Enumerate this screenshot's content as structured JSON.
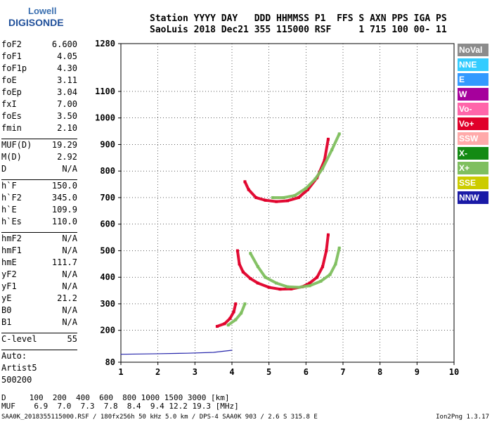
{
  "logo": {
    "line1": "Lowell",
    "line2": "DIGISONDE"
  },
  "header": {
    "line1": "Station YYYY DAY   DDD HHMMSS P1  FFS S AXN PPS IGA PS",
    "line2": "SaoLuis 2018 Dec21 355 115000 RSF     1 715 100 00- 11"
  },
  "params": {
    "group1": [
      {
        "name": "foF2",
        "value": "6.600"
      },
      {
        "name": "foF1",
        "value": "4.05"
      },
      {
        "name": "foF1p",
        "value": "4.30"
      },
      {
        "name": "foE",
        "value": "3.11"
      },
      {
        "name": "foEp",
        "value": "3.04"
      },
      {
        "name": "fxI",
        "value": "7.00"
      },
      {
        "name": "foEs",
        "value": "3.50"
      },
      {
        "name": "fmin",
        "value": "2.10"
      }
    ],
    "group2": [
      {
        "name": "MUF(D)",
        "value": "19.29"
      },
      {
        "name": "M(D)",
        "value": "2.92"
      },
      {
        "name": "D",
        "value": "N/A"
      }
    ],
    "group3": [
      {
        "name": "h`F",
        "value": "150.0"
      },
      {
        "name": "h`F2",
        "value": "345.0"
      },
      {
        "name": "h`E",
        "value": "109.9"
      },
      {
        "name": "h`Es",
        "value": "110.0"
      }
    ],
    "group4": [
      {
        "name": "hmF2",
        "value": "N/A"
      },
      {
        "name": "hmF1",
        "value": "N/A"
      },
      {
        "name": "hmE",
        "value": "111.7"
      },
      {
        "name": "yF2",
        "value": "N/A"
      },
      {
        "name": "yF1",
        "value": "N/A"
      },
      {
        "name": "yE",
        "value": "21.2"
      },
      {
        "name": "B0",
        "value": "N/A"
      },
      {
        "name": "B1",
        "value": "N/A"
      }
    ],
    "clevel": {
      "name": "C-level",
      "value": "55"
    },
    "auto": {
      "line1": "Auto:",
      "line2": "Artist5",
      "line3": "500200"
    }
  },
  "legend": [
    {
      "label": "NoVal",
      "color": "#8c8c8c"
    },
    {
      "label": "NNE",
      "color": "#33ccff"
    },
    {
      "label": "E",
      "color": "#3399ff"
    },
    {
      "label": "W",
      "color": "#a6009c"
    },
    {
      "label": "Vo-",
      "color": "#ff66aa"
    },
    {
      "label": "Vo+",
      "color": "#e0002a"
    },
    {
      "label": "SSW",
      "color": "#ffaaaa"
    },
    {
      "label": "X-",
      "color": "#138a13"
    },
    {
      "label": "X+",
      "color": "#7fbf5f"
    },
    {
      "label": "SSE",
      "color": "#cccc00"
    },
    {
      "label": "NNW",
      "color": "#1a1aa6"
    }
  ],
  "bottom": {
    "line1": "D     100  200  400  600  800 1000 1500 3000 [km]",
    "line2": "MUF    6.9  7.0  7.3  7.8  8.4  9.4 12.2 19.3 [MHz]"
  },
  "footer": {
    "text": "SAA0K_2018355115000.RSF / 180fx256h 50 kHz 5.0 km / DPS-4 SAA0K 903 / 2.6 S 315.8 E",
    "version": "Ion2Png 1.3.17"
  },
  "chart_data": {
    "type": "scatter",
    "xlim": [
      1,
      10
    ],
    "ylim": [
      80,
      1280
    ],
    "x_ticks": [
      "1",
      "2",
      "3",
      "4",
      "5",
      "6",
      "7",
      "8",
      "9",
      "10"
    ],
    "y_ticks": [
      "80",
      "200",
      "300",
      "400",
      "500",
      "600",
      "700",
      "800",
      "900",
      "1000",
      "1100",
      "1280"
    ],
    "grid": true,
    "traces": [
      {
        "name": "Vo+",
        "points": [
          [
            4.15,
            500
          ],
          [
            4.2,
            450
          ],
          [
            4.3,
            420
          ],
          [
            4.5,
            395
          ],
          [
            4.7,
            378
          ],
          [
            5.0,
            362
          ],
          [
            5.3,
            355
          ],
          [
            5.6,
            356
          ],
          [
            5.9,
            364
          ],
          [
            6.1,
            378
          ],
          [
            6.3,
            400
          ],
          [
            6.45,
            440
          ],
          [
            6.55,
            500
          ],
          [
            6.6,
            560
          ]
        ]
      },
      {
        "name": "X+",
        "points": [
          [
            4.5,
            490
          ],
          [
            4.7,
            440
          ],
          [
            4.9,
            400
          ],
          [
            5.2,
            378
          ],
          [
            5.5,
            364
          ],
          [
            5.8,
            362
          ],
          [
            6.1,
            368
          ],
          [
            6.4,
            385
          ],
          [
            6.65,
            410
          ],
          [
            6.8,
            450
          ],
          [
            6.9,
            510
          ]
        ]
      },
      {
        "name": "Vo+",
        "points": [
          [
            4.35,
            760
          ],
          [
            4.45,
            730
          ],
          [
            4.65,
            700
          ],
          [
            4.9,
            690
          ],
          [
            5.2,
            685
          ],
          [
            5.5,
            688
          ],
          [
            5.8,
            700
          ],
          [
            6.05,
            730
          ],
          [
            6.3,
            775
          ],
          [
            6.5,
            840
          ],
          [
            6.6,
            920
          ]
        ]
      },
      {
        "name": "X+",
        "points": [
          [
            5.1,
            700
          ],
          [
            5.4,
            700
          ],
          [
            5.7,
            708
          ],
          [
            6.0,
            735
          ],
          [
            6.25,
            770
          ],
          [
            6.45,
            810
          ],
          [
            6.7,
            880
          ],
          [
            6.9,
            940
          ]
        ]
      },
      {
        "name": "Vo+",
        "points": [
          [
            3.6,
            215
          ],
          [
            3.8,
            225
          ],
          [
            3.95,
            245
          ],
          [
            4.05,
            270
          ],
          [
            4.1,
            300
          ]
        ]
      },
      {
        "name": "X+",
        "points": [
          [
            3.9,
            220
          ],
          [
            4.1,
            240
          ],
          [
            4.25,
            265
          ],
          [
            4.35,
            300
          ]
        ]
      },
      {
        "name": "NNW",
        "points": [
          [
            1.0,
            110
          ],
          [
            2.0,
            112
          ],
          [
            2.8,
            114
          ],
          [
            3.5,
            117
          ],
          [
            4.0,
            125
          ]
        ]
      }
    ]
  }
}
